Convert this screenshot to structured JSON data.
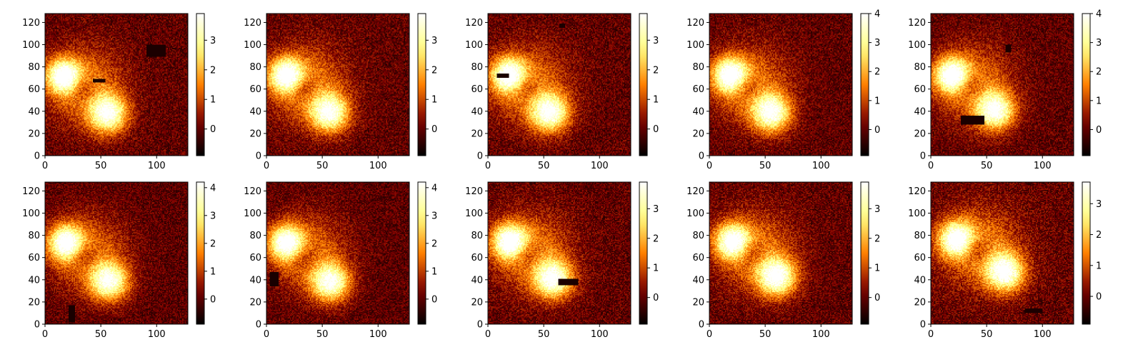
{
  "chart_data": [
    {
      "type": "heatmap",
      "colormap": "afmhot",
      "xlim": [
        0,
        128
      ],
      "ylim": [
        0,
        128
      ],
      "xticks": [
        "0",
        "50",
        "100"
      ],
      "yticks": [
        "0",
        "20",
        "40",
        "60",
        "80",
        "100",
        "120"
      ],
      "colorbar": {
        "range": [
          -0.9,
          3.9
        ],
        "ticks": [
          0,
          1,
          2,
          3
        ],
        "tick_labels": [
          "0",
          "1",
          "2",
          "3"
        ]
      },
      "blobs": [
        {
          "cx": 16,
          "cy": 71,
          "peak": 3.8
        },
        {
          "cx": 56,
          "cy": 37,
          "peak": 3.6
        }
      ],
      "masks": [
        {
          "x": [
            91,
            107
          ],
          "y": [
            89,
            99
          ]
        },
        {
          "x": [
            43,
            53
          ],
          "y": [
            66,
            68
          ]
        }
      ]
    },
    {
      "type": "heatmap",
      "colormap": "afmhot",
      "xlim": [
        0,
        128
      ],
      "ylim": [
        0,
        128
      ],
      "xticks": [
        "0",
        "50",
        "100"
      ],
      "yticks": [
        "0",
        "20",
        "40",
        "60",
        "80",
        "100",
        "120"
      ],
      "colorbar": {
        "range": [
          -0.9,
          3.9
        ],
        "ticks": [
          0,
          1,
          2,
          3
        ],
        "tick_labels": [
          "0",
          "1",
          "2",
          "3"
        ]
      },
      "blobs": [
        {
          "cx": 17,
          "cy": 72,
          "peak": 3.8
        },
        {
          "cx": 56,
          "cy": 38,
          "peak": 3.6
        }
      ],
      "masks": []
    },
    {
      "type": "heatmap",
      "colormap": "afmhot",
      "xlim": [
        0,
        128
      ],
      "ylim": [
        0,
        128
      ],
      "xticks": [
        "0",
        "50",
        "100"
      ],
      "yticks": [
        "0",
        "20",
        "40",
        "60",
        "80",
        "100",
        "120"
      ],
      "colorbar": {
        "range": [
          -0.9,
          3.9
        ],
        "ticks": [
          0,
          1,
          2,
          3
        ],
        "tick_labels": [
          "0",
          "1",
          "2",
          "3"
        ]
      },
      "blobs": [
        {
          "cx": 18,
          "cy": 72,
          "peak": 3.7
        },
        {
          "cx": 55,
          "cy": 38,
          "peak": 3.6
        }
      ],
      "masks": [
        {
          "x": [
            8,
            18
          ],
          "y": [
            70,
            73
          ]
        },
        {
          "x": [
            64,
            68
          ],
          "y": [
            115,
            118
          ]
        }
      ]
    },
    {
      "type": "heatmap",
      "colormap": "afmhot",
      "xlim": [
        0,
        128
      ],
      "ylim": [
        0,
        128
      ],
      "xticks": [
        "0",
        "50",
        "100"
      ],
      "yticks": [
        "0",
        "20",
        "40",
        "60",
        "80",
        "100",
        "120"
      ],
      "colorbar": {
        "range": [
          -0.9,
          4.0
        ],
        "ticks": [
          0,
          1,
          2,
          3,
          4
        ],
        "tick_labels": [
          "0",
          "1",
          "2",
          "3",
          "4"
        ]
      },
      "blobs": [
        {
          "cx": 18,
          "cy": 72,
          "peak": 3.9
        },
        {
          "cx": 55,
          "cy": 38,
          "peak": 3.7
        }
      ],
      "masks": []
    },
    {
      "type": "heatmap",
      "colormap": "afmhot",
      "xlim": [
        0,
        128
      ],
      "ylim": [
        0,
        128
      ],
      "xticks": [
        "0",
        "50",
        "100"
      ],
      "yticks": [
        "0",
        "20",
        "40",
        "60",
        "80",
        "100",
        "120"
      ],
      "colorbar": {
        "range": [
          -0.9,
          4.0
        ],
        "ticks": [
          0,
          1,
          2,
          3,
          4
        ],
        "tick_labels": [
          "0",
          "1",
          "2",
          "3",
          "4"
        ]
      },
      "blobs": [
        {
          "cx": 18,
          "cy": 72,
          "peak": 3.9
        },
        {
          "cx": 57,
          "cy": 40,
          "peak": 3.7
        }
      ],
      "masks": [
        {
          "x": [
            27,
            47
          ],
          "y": [
            28,
            35
          ]
        },
        {
          "x": [
            67,
            71
          ],
          "y": [
            93,
            99
          ]
        }
      ]
    },
    {
      "type": "heatmap",
      "colormap": "afmhot",
      "xlim": [
        0,
        128
      ],
      "ylim": [
        0,
        128
      ],
      "xticks": [
        "0",
        "50",
        "100"
      ],
      "yticks": [
        "0",
        "20",
        "40",
        "60",
        "80",
        "100",
        "120"
      ],
      "colorbar": {
        "range": [
          -0.9,
          4.2
        ],
        "ticks": [
          0,
          1,
          2,
          3,
          4
        ],
        "tick_labels": [
          "0",
          "1",
          "2",
          "3",
          "4"
        ]
      },
      "blobs": [
        {
          "cx": 18,
          "cy": 73,
          "peak": 4.0
        },
        {
          "cx": 57,
          "cy": 38,
          "peak": 3.8
        }
      ],
      "masks": [
        {
          "x": [
            21,
            26
          ],
          "y": [
            2,
            16
          ]
        }
      ]
    },
    {
      "type": "heatmap",
      "colormap": "afmhot",
      "xlim": [
        0,
        128
      ],
      "ylim": [
        0,
        128
      ],
      "xticks": [
        "0",
        "50",
        "100"
      ],
      "yticks": [
        "0",
        "20",
        "40",
        "60",
        "80",
        "100",
        "120"
      ],
      "colorbar": {
        "range": [
          -0.9,
          4.2
        ],
        "ticks": [
          0,
          1,
          2,
          3,
          4
        ],
        "tick_labels": [
          "0",
          "1",
          "2",
          "3",
          "4"
        ]
      },
      "blobs": [
        {
          "cx": 17,
          "cy": 73,
          "peak": 4.0
        },
        {
          "cx": 57,
          "cy": 37,
          "peak": 3.8
        }
      ],
      "masks": [
        {
          "x": [
            3,
            10
          ],
          "y": [
            34,
            46
          ]
        }
      ]
    },
    {
      "type": "heatmap",
      "colormap": "afmhot",
      "xlim": [
        0,
        128
      ],
      "ylim": [
        0,
        128
      ],
      "xticks": [
        "0",
        "50",
        "100"
      ],
      "yticks": [
        "0",
        "20",
        "40",
        "60",
        "80",
        "100",
        "120"
      ],
      "colorbar": {
        "range": [
          -0.9,
          3.9
        ],
        "ticks": [
          0,
          1,
          2,
          3
        ],
        "tick_labels": [
          "0",
          "1",
          "2",
          "3"
        ]
      },
      "blobs": [
        {
          "cx": 19,
          "cy": 74,
          "peak": 3.8
        },
        {
          "cx": 58,
          "cy": 40,
          "peak": 3.7
        }
      ],
      "masks": [
        {
          "x": [
            63,
            80
          ],
          "y": [
            35,
            40
          ]
        }
      ]
    },
    {
      "type": "heatmap",
      "colormap": "afmhot",
      "xlim": [
        0,
        128
      ],
      "ylim": [
        0,
        128
      ],
      "xticks": [
        "0",
        "50",
        "100"
      ],
      "yticks": [
        "0",
        "20",
        "40",
        "60",
        "80",
        "100",
        "120"
      ],
      "colorbar": {
        "range": [
          -0.9,
          3.9
        ],
        "ticks": [
          0,
          1,
          2,
          3
        ],
        "tick_labels": [
          "0",
          "1",
          "2",
          "3"
        ]
      },
      "blobs": [
        {
          "cx": 20,
          "cy": 74,
          "peak": 3.7
        },
        {
          "cx": 60,
          "cy": 42,
          "peak": 3.8
        }
      ],
      "masks": []
    },
    {
      "type": "heatmap",
      "colormap": "afmhot",
      "xlim": [
        0,
        128
      ],
      "ylim": [
        0,
        128
      ],
      "xticks": [
        "0",
        "50",
        "100"
      ],
      "yticks": [
        "0",
        "20",
        "40",
        "60",
        "80",
        "100",
        "120"
      ],
      "colorbar": {
        "range": [
          -0.9,
          3.7
        ],
        "ticks": [
          0,
          1,
          2,
          3
        ],
        "tick_labels": [
          "0",
          "1",
          "2",
          "3"
        ]
      },
      "blobs": [
        {
          "cx": 22,
          "cy": 76,
          "peak": 3.6
        },
        {
          "cx": 66,
          "cy": 46,
          "peak": 3.6
        }
      ],
      "masks": [
        {
          "x": [
            84,
            99
          ],
          "y": [
            10,
            13
          ]
        }
      ]
    }
  ]
}
